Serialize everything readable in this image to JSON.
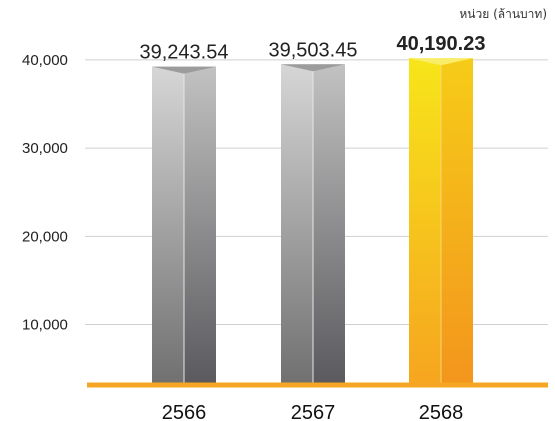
{
  "unit_label": "หน่วย (ล้านบาท)",
  "chart_data": {
    "type": "bar",
    "categories": [
      "2566",
      "2567",
      "2568"
    ],
    "values": [
      39243.54,
      39503.45,
      40190.23
    ],
    "value_labels": [
      "39,243.54",
      "39,503.45",
      "40,190.23"
    ],
    "y_ticks": [
      10000,
      20000,
      30000,
      40000
    ],
    "y_tick_labels": [
      "10,000",
      "20,000",
      "30,000",
      "40,000"
    ],
    "ylim": [
      3200,
      46000
    ],
    "grid": true,
    "highlighted_category": "2568",
    "colors": {
      "baseline": "#f5a623",
      "grid": "#cfcfcf",
      "highlight_light": "#f7e21a",
      "highlight_dark": "#f39a1e",
      "bar_light": "#dcdcdc",
      "bar_dark": "#5f5f63"
    }
  }
}
